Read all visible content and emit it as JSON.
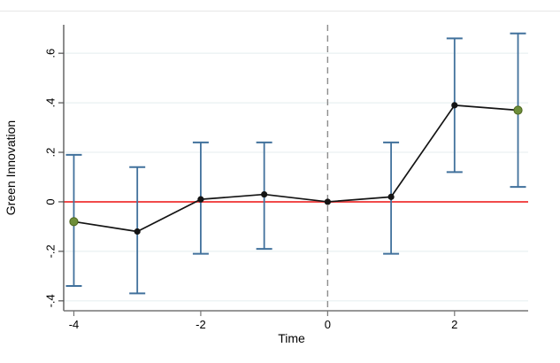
{
  "figure": {
    "background": "#ffffff"
  },
  "chart_data": {
    "type": "line",
    "subtype": "event-study coefficient plot with error bars",
    "title": "",
    "xlabel": "Time",
    "ylabel": "Green Innovation",
    "xlim": [
      -4.16,
      3.16
    ],
    "ylim": [
      -0.44,
      0.715
    ],
    "grid": true,
    "legend": "none",
    "x_ticks": [
      {
        "v": -4,
        "label": "-4"
      },
      {
        "v": -2,
        "label": "-2"
      },
      {
        "v": 0,
        "label": "0"
      },
      {
        "v": 2,
        "label": "2"
      }
    ],
    "y_ticks": [
      {
        "v": 0.6,
        "label": ".6"
      },
      {
        "v": 0.4,
        "label": ".4"
      },
      {
        "v": 0.2,
        "label": ".2"
      },
      {
        "v": 0,
        "label": "0"
      },
      {
        "v": -0.2,
        "label": "-.2"
      },
      {
        "v": -0.4,
        "label": "-.4"
      }
    ],
    "reference_lines": [
      {
        "axis": "y",
        "value": 0,
        "style": "solid",
        "color_key": "zero_line"
      },
      {
        "axis": "x",
        "value": 0,
        "style": "dashed",
        "color_key": "event_line"
      }
    ],
    "series": [
      {
        "name": "coefficient",
        "x": [
          -4,
          -3,
          -2,
          -1,
          0,
          1,
          2,
          3
        ],
        "y": [
          -0.08,
          -0.12,
          0.01,
          0.03,
          0,
          0.02,
          0.39,
          0.37
        ],
        "ci_low": [
          -0.34,
          -0.37,
          -0.21,
          -0.19,
          null,
          -0.21,
          0.12,
          0.06
        ],
        "ci_high": [
          0.19,
          0.14,
          0.24,
          0.24,
          null,
          0.24,
          0.66,
          0.68
        ],
        "marker": [
          "green",
          "black",
          "black",
          "black",
          "black",
          "black",
          "black",
          "green"
        ]
      }
    ],
    "colors": {
      "ci": "#41719c",
      "line": "#141414",
      "marker_black": "#141414",
      "marker_green": "#6e8e3a",
      "marker_green_edge": "#4d661e",
      "zero_line": "#f14b4b",
      "event_line": "#8c8c8c",
      "grid": "#e9f1f2",
      "axis_x": "#757575",
      "axis_y": "#4f4f4f",
      "page_top_border": "#e7e7e7",
      "text": "#000000"
    }
  }
}
